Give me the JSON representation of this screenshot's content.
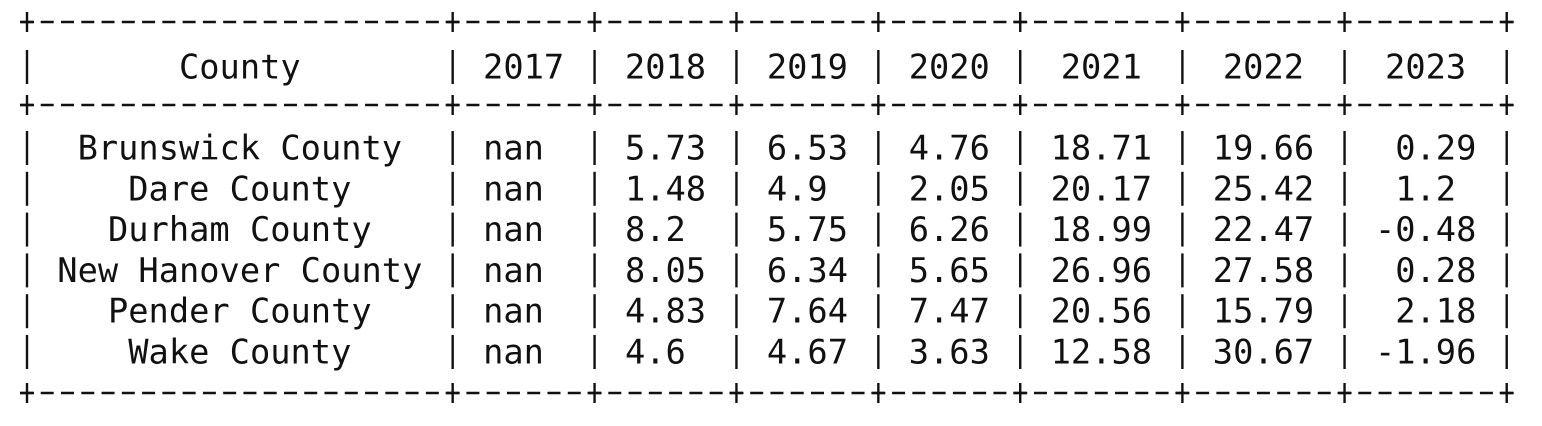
{
  "table": {
    "columns": [
      "County",
      "2017",
      "2018",
      "2019",
      "2020",
      "2021",
      "2022",
      "2023"
    ],
    "rows": [
      [
        "Brunswick County",
        "nan",
        5.73,
        6.53,
        4.76,
        18.71,
        19.66,
        0.29
      ],
      [
        "Dare County",
        "nan",
        1.48,
        4.9,
        2.05,
        20.17,
        25.42,
        1.2
      ],
      [
        "Durham County",
        "nan",
        8.2,
        5.75,
        6.26,
        18.99,
        22.47,
        -0.48
      ],
      [
        "New Hanover County",
        "nan",
        8.05,
        6.34,
        5.65,
        26.96,
        27.58,
        0.28
      ],
      [
        "Pender County",
        "nan",
        4.83,
        7.64,
        7.47,
        20.56,
        15.79,
        2.18
      ],
      [
        "Wake County",
        "nan",
        4.6,
        4.67,
        3.63,
        12.58,
        30.67,
        -1.96
      ]
    ]
  }
}
